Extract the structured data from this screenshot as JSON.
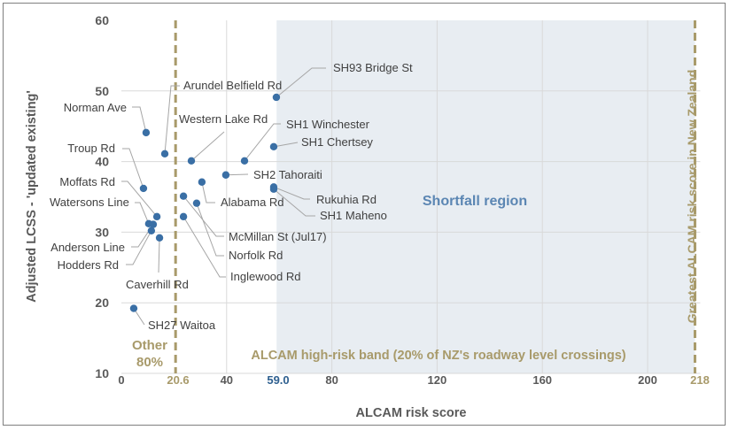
{
  "chart_data": {
    "type": "scatter",
    "xlabel": "ALCAM risk score",
    "ylabel": "Adjusted LCSS - 'updated existing'",
    "xlim": [
      0,
      220
    ],
    "ylim": [
      10,
      60
    ],
    "x_ticks": [
      "0",
      "40",
      "80",
      "120",
      "160",
      "200"
    ],
    "y_ticks": [
      "10",
      "20",
      "30",
      "40",
      "50",
      "60"
    ],
    "grid": true,
    "point_color": "#3a6fa5",
    "points": [
      {
        "label": "SH27 Waitoa",
        "x": 4.7,
        "y": 19.2
      },
      {
        "label": "Norman Ave",
        "x": 9.4,
        "y": 44.1
      },
      {
        "label": "Arundel Belfield Rd",
        "x": 16.5,
        "y": 41.1
      },
      {
        "label": "Western Lake Rd",
        "x": 26.6,
        "y": 40.1
      },
      {
        "label": "SH1 Winchester",
        "x": 46.8,
        "y": 40.1
      },
      {
        "label": "SH93 Bridge St",
        "x": 58.9,
        "y": 49.1
      },
      {
        "label": "SH1 Chertsey",
        "x": 57.9,
        "y": 42.1
      },
      {
        "label": "SH2 Tahoraiti",
        "x": 39.7,
        "y": 38.1
      },
      {
        "label": "Rukuhia Rd",
        "x": 57.9,
        "y": 36.4
      },
      {
        "label": "SH1 Maheno",
        "x": 57.9,
        "y": 36.1
      },
      {
        "label": "Troup Rd",
        "x": 8.4,
        "y": 36.2
      },
      {
        "label": "Alabama Rd",
        "x": 30.6,
        "y": 37.1
      },
      {
        "label": "McMillan St (Jul17)",
        "x": 23.6,
        "y": 35.1
      },
      {
        "label": "Norfolk Rd",
        "x": 28.6,
        "y": 34.1
      },
      {
        "label": "Inglewood Rd",
        "x": 23.6,
        "y": 32.2
      },
      {
        "label": "Moffats Rd",
        "x": 13.5,
        "y": 32.2
      },
      {
        "label": "Watersons Line",
        "x": 10.4,
        "y": 31.2
      },
      {
        "label": "Anderson Line",
        "x": 12.1,
        "y": 31.1
      },
      {
        "label": "Hodders Rd",
        "x": 11.4,
        "y": 30.2
      },
      {
        "label": "Caverhill Rd",
        "x": 14.5,
        "y": 29.2
      }
    ],
    "reference_lines": [
      {
        "x": 20.6,
        "label": "20.6",
        "color": "#a89a6a"
      },
      {
        "x": 218,
        "label": "218",
        "color": "#a89a6a",
        "annotation": "Greatest ALCAM risk score in New Zealand"
      }
    ],
    "threshold_label": "59.0",
    "threshold_x": 59.0,
    "shaded_region": {
      "x_from": 59.0,
      "x_to": 218,
      "label": "Shortfall region",
      "color": "#e8edf2",
      "label_color": "#5b86b3"
    },
    "annotations": {
      "other": "Other",
      "other_pct": "80%",
      "band": "ALCAM high-risk band (20% of NZ's roadway level crossings)",
      "annotation_color": "#a89a6a"
    }
  }
}
